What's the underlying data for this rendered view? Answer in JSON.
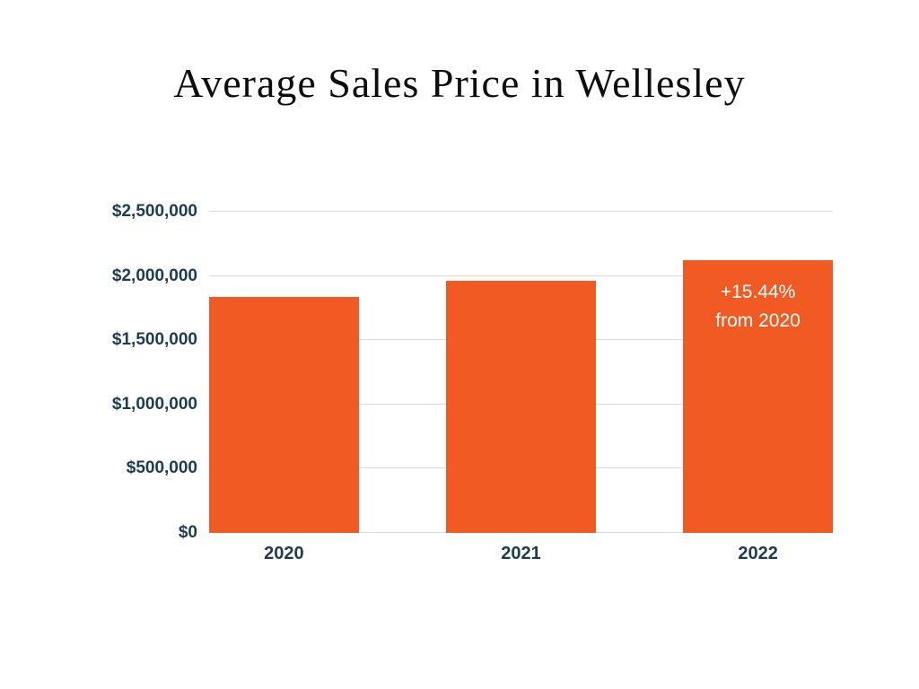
{
  "page": {
    "background": "#ffffff"
  },
  "chart_data": {
    "type": "bar",
    "title": "Average Sales Price in Wellesley",
    "categories": [
      "2020",
      "2021",
      "2022"
    ],
    "values": [
      1840000,
      1965000,
      2124000
    ],
    "ylim": [
      0,
      2500000
    ],
    "yticks": [
      {
        "value": 0,
        "label": "$0"
      },
      {
        "value": 500000,
        "label": "$500,000"
      },
      {
        "value": 1000000,
        "label": "$1,000,000"
      },
      {
        "value": 1500000,
        "label": "$1,500,000"
      },
      {
        "value": 2000000,
        "label": "$2,000,000"
      },
      {
        "value": 2500000,
        "label": "$2,500,000"
      }
    ],
    "grid": true,
    "legend": false,
    "bar_color": "#F15A22",
    "axis_label_color": "#1d3c50",
    "annotations": [
      {
        "category": "2022",
        "lines": [
          "+15.44%",
          "from 2020"
        ],
        "color": "#ffffff"
      }
    ]
  }
}
